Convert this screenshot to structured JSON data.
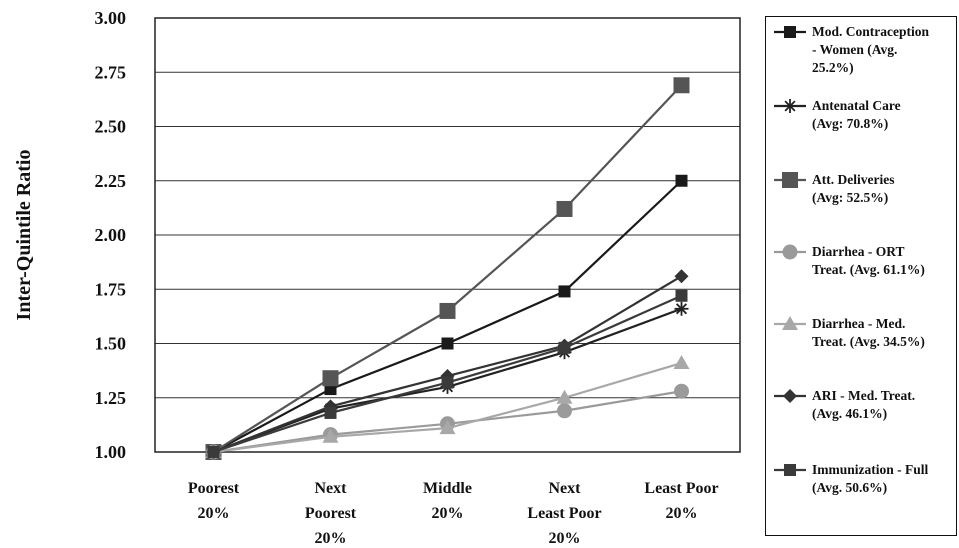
{
  "chart_data": {
    "type": "line",
    "ylabel": "Inter-Quintile Ratio",
    "xlabel": "",
    "ylim": [
      1.0,
      3.0
    ],
    "yticks": [
      "1.00",
      "1.25",
      "1.50",
      "1.75",
      "2.00",
      "2.25",
      "2.50",
      "2.75",
      "3.00"
    ],
    "categories": [
      [
        "Poorest",
        "20%"
      ],
      [
        "Next",
        "Poorest",
        "20%"
      ],
      [
        "Middle",
        "20%"
      ],
      [
        "Next",
        "Least Poor",
        "20%"
      ],
      [
        "Least Poor",
        "20%"
      ]
    ],
    "grid": true,
    "legend_position": "right",
    "series": [
      {
        "name": "Mod. Contraception - Women (Avg. 25.2%)",
        "legend_lines": [
          "Mod. Contraception",
          "- Women (Avg.",
          "25.2%)"
        ],
        "marker": "square",
        "color": "#1a1a1a",
        "values": [
          1.0,
          1.29,
          1.5,
          1.74,
          2.25
        ]
      },
      {
        "name": "Antenatal Care (Avg: 70.8%)",
        "legend_lines": [
          "Antenatal Care",
          "(Avg: 70.8%)"
        ],
        "marker": "star",
        "color": "#222222",
        "values": [
          1.0,
          1.2,
          1.3,
          1.46,
          1.66
        ]
      },
      {
        "name": "Att. Deliveries (Avg: 52.5%)",
        "legend_lines": [
          "Att. Deliveries",
          "(Avg: 52.5%)"
        ],
        "marker": "square-large",
        "color": "#555555",
        "values": [
          1.0,
          1.34,
          1.65,
          2.12,
          2.69
        ]
      },
      {
        "name": "Diarrhea - ORT Treat. (Avg. 61.1%)",
        "legend_lines": [
          "Diarrhea - ORT",
          "Treat. (Avg. 61.1%)"
        ],
        "marker": "circle",
        "color": "#9a9a9a",
        "values": [
          1.0,
          1.08,
          1.13,
          1.19,
          1.28
        ]
      },
      {
        "name": "Diarrhea - Med. Treat. (Avg. 34.5%)",
        "legend_lines": [
          "Diarrhea - Med.",
          "Treat. (Avg. 34.5%)"
        ],
        "marker": "triangle",
        "color": "#a8a8a8",
        "values": [
          1.0,
          1.07,
          1.11,
          1.25,
          1.41
        ]
      },
      {
        "name": "ARI - Med. Treat. (Avg. 46.1%)",
        "legend_lines": [
          "ARI - Med. Treat.",
          "(Avg. 46.1%)"
        ],
        "marker": "diamond",
        "color": "#333333",
        "values": [
          1.0,
          1.21,
          1.35,
          1.49,
          1.81
        ]
      },
      {
        "name": "Immunization - Full (Avg. 50.6%)",
        "legend_lines": [
          "Immunization - Full",
          "(Avg. 50.6%)"
        ],
        "marker": "square",
        "color": "#3a3a3a",
        "values": [
          1.0,
          1.18,
          1.32,
          1.48,
          1.72
        ]
      }
    ]
  }
}
